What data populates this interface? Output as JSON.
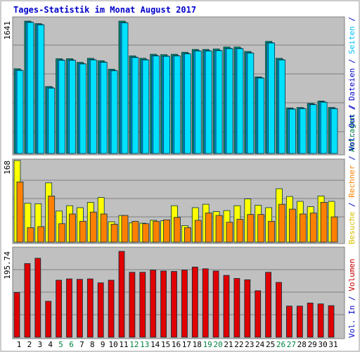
{
  "title": "Tages-Statistik im Monat August 2017",
  "right_label": {
    "panel1": [
      {
        "text": "Anfragen",
        "color": "#008040"
      },
      {
        "text": " / ",
        "color": "#0000cc"
      },
      {
        "text": "Dateien",
        "color": "#0000cc"
      },
      {
        "text": " / ",
        "color": "#0000cc"
      },
      {
        "text": "Seiten",
        "color": "#00c0ff"
      },
      {
        "text": " / ",
        "color": "#0000cc"
      }
    ],
    "panel2": [
      {
        "text": "Besuche",
        "color": "#d4c000"
      },
      {
        "text": " / ",
        "color": "#0000cc"
      },
      {
        "text": "Rechner",
        "color": "#ff8000"
      },
      {
        "text": " / ",
        "color": "#0000cc"
      },
      {
        "text": "Vol. Out",
        "color": "#0000cc"
      },
      {
        "text": " / ",
        "color": "#0000cc"
      }
    ],
    "panel3": [
      {
        "text": "Vol. In",
        "color": "#0000cc"
      },
      {
        "text": " / ",
        "color": "#0000cc"
      },
      {
        "text": "Volumen",
        "color": "#cc0000"
      }
    ]
  },
  "chart_data": [
    {
      "type": "bar",
      "title": "Tages-Statistik im Monat August 2017",
      "ymax_label": "1641",
      "ylim": [
        0,
        1641
      ],
      "categories": [
        "1",
        "2",
        "3",
        "4",
        "5",
        "6",
        "7",
        "8",
        "9",
        "10",
        "11",
        "12",
        "13",
        "14",
        "15",
        "16",
        "17",
        "18",
        "19",
        "20",
        "21",
        "22",
        "23",
        "24",
        "25",
        "26",
        "27",
        "28",
        "29",
        "30",
        "31"
      ],
      "weekend_days": [
        "5",
        "6",
        "12",
        "13",
        "19",
        "20",
        "26",
        "27"
      ],
      "series": [
        {
          "name": "Anfragen",
          "color": "#00a070",
          "values": [
            1050,
            1641,
            1610,
            830,
            1175,
            1175,
            1130,
            1180,
            1150,
            1045,
            1641,
            1210,
            1180,
            1230,
            1225,
            1230,
            1255,
            1290,
            1290,
            1295,
            1320,
            1320,
            1265,
            950,
            1390,
            1180,
            565,
            570,
            620,
            650,
            570
          ]
        },
        {
          "name": "Dateien",
          "color": "#00a0ff",
          "values": [
            1035,
            1630,
            1600,
            820,
            1160,
            1160,
            1115,
            1165,
            1135,
            1030,
            1625,
            1195,
            1165,
            1215,
            1210,
            1215,
            1240,
            1275,
            1275,
            1280,
            1305,
            1305,
            1250,
            940,
            1375,
            1165,
            555,
            560,
            610,
            640,
            560
          ]
        },
        {
          "name": "Seiten",
          "color": "#00e0ff",
          "values": [
            1030,
            1625,
            1595,
            810,
            1155,
            1155,
            1110,
            1160,
            1130,
            1025,
            1620,
            1190,
            1160,
            1210,
            1205,
            1210,
            1235,
            1270,
            1270,
            1275,
            1300,
            1300,
            1245,
            935,
            1370,
            1160,
            550,
            555,
            605,
            635,
            555
          ]
        }
      ]
    },
    {
      "type": "bar",
      "ymax_label": "168",
      "ylim": [
        0,
        168
      ],
      "categories": [
        "1",
        "2",
        "3",
        "4",
        "5",
        "6",
        "7",
        "8",
        "9",
        "10",
        "11",
        "12",
        "13",
        "14",
        "15",
        "16",
        "17",
        "18",
        "19",
        "20",
        "21",
        "22",
        "23",
        "24",
        "25",
        "26",
        "27",
        "28",
        "29",
        "30",
        "31"
      ],
      "series": [
        {
          "name": "Besuche",
          "color": "#ffff00",
          "values": [
            168,
            80,
            79,
            122,
            64,
            75,
            71,
            82,
            92,
            42,
            55,
            40,
            39,
            45,
            44,
            75,
            34,
            71,
            78,
            63,
            65,
            75,
            89,
            76,
            71,
            110,
            94,
            84,
            73,
            95,
            84
          ]
        },
        {
          "name": "Rechner",
          "color": "#ff8000",
          "values": [
            124,
            30,
            32,
            95,
            38,
            58,
            43,
            62,
            58,
            37,
            55,
            43,
            38,
            43,
            46,
            51,
            30,
            45,
            60,
            55,
            41,
            47,
            57,
            57,
            43,
            78,
            68,
            58,
            60,
            82,
            52
          ]
        }
      ]
    },
    {
      "type": "bar",
      "ymax_label": "195.74",
      "ylim": [
        0,
        195.74
      ],
      "categories": [
        "1",
        "2",
        "3",
        "4",
        "5",
        "6",
        "7",
        "8",
        "9",
        "10",
        "11",
        "12",
        "13",
        "14",
        "15",
        "16",
        "17",
        "18",
        "19",
        "20",
        "21",
        "22",
        "23",
        "24",
        "25",
        "26",
        "27",
        "28",
        "29",
        "30",
        "31"
      ],
      "series": [
        {
          "name": "Volumen",
          "color": "#e00000",
          "values": [
            102,
            168,
            180,
            82,
            130,
            133,
            132,
            133,
            124,
            130,
            195.74,
            148,
            148,
            153,
            151,
            150,
            153,
            160,
            156,
            151,
            141,
            134,
            131,
            106,
            148,
            125,
            71,
            71,
            78,
            76,
            72
          ]
        }
      ]
    }
  ]
}
